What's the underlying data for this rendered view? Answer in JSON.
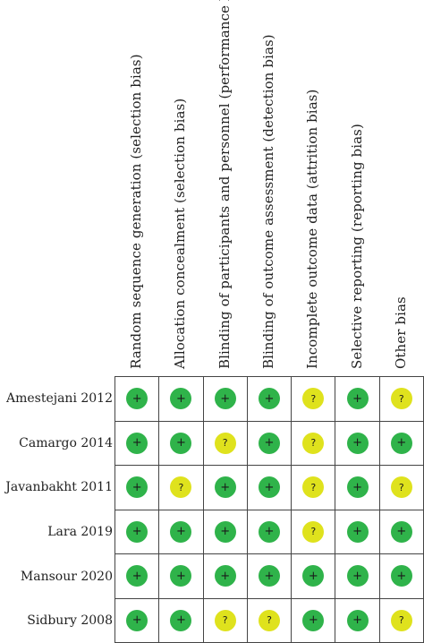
{
  "columns": [
    {
      "label": "Random sequence generation (selection bias)"
    },
    {
      "label": "Allocation concealment (selection bias)"
    },
    {
      "label": "Blinding of participants and personnel (performance bias)"
    },
    {
      "label": "Blinding of outcome assessment (detection bias)"
    },
    {
      "label": "Incomplete outcome data (attrition bias)"
    },
    {
      "label": "Selective reporting (reporting bias)"
    },
    {
      "label": "Other bias"
    }
  ],
  "studies": [
    {
      "name": "Amestejani 2012",
      "ratings": [
        "low",
        "low",
        "low",
        "low",
        "unclear",
        "low",
        "unclear"
      ]
    },
    {
      "name": "Camargo 2014",
      "ratings": [
        "low",
        "low",
        "unclear",
        "low",
        "unclear",
        "low",
        "low"
      ]
    },
    {
      "name": "Javanbakht 2011",
      "ratings": [
        "low",
        "unclear",
        "low",
        "low",
        "unclear",
        "low",
        "unclear"
      ]
    },
    {
      "name": "Lara 2019",
      "ratings": [
        "low",
        "low",
        "low",
        "low",
        "unclear",
        "low",
        "low"
      ]
    },
    {
      "name": "Mansour 2020",
      "ratings": [
        "low",
        "low",
        "low",
        "low",
        "low",
        "low",
        "low"
      ]
    },
    {
      "name": "Sidbury 2008",
      "ratings": [
        "low",
        "low",
        "unclear",
        "unclear",
        "low",
        "low",
        "unclear"
      ]
    }
  ],
  "symbols": {
    "low": "+",
    "unclear": "?"
  },
  "colors": {
    "low": "#2fb34a",
    "unclear": "#dfe21d",
    "grid": "#444444"
  }
}
